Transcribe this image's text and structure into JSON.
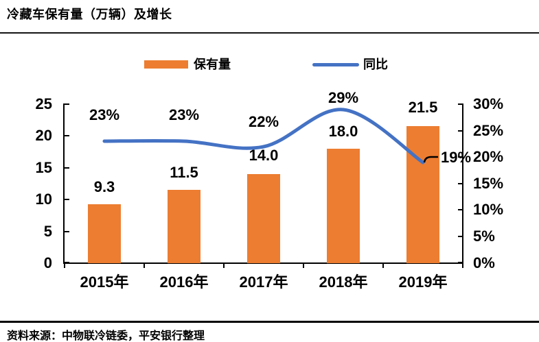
{
  "title": "冷藏车保有量（万辆）及增长",
  "source_note": "资料来源：中物联冷链委，平安银行整理",
  "legend": {
    "bar_label": "保有量",
    "line_label": "同比"
  },
  "colors": {
    "bar": "#ED7D31",
    "line": "#4472C4",
    "axis": "#000000"
  },
  "chart_data": {
    "type": "bar+line",
    "title": "冷藏车保有量（万辆）及增长",
    "categories": [
      "2015年",
      "2016年",
      "2017年",
      "2018年",
      "2019年"
    ],
    "series": [
      {
        "name": "保有量",
        "type": "bar",
        "axis": "left",
        "color": "#ED7D31",
        "values": [
          9.3,
          11.5,
          14.0,
          18.0,
          21.5
        ],
        "data_labels": [
          "9.3",
          "11.5",
          "14.0",
          "18.0",
          "21.5"
        ]
      },
      {
        "name": "同比",
        "type": "line",
        "axis": "right",
        "color": "#4472C4",
        "smooth": true,
        "values": [
          23,
          23,
          22,
          29,
          19
        ],
        "data_labels": [
          "23%",
          "23%",
          "22%",
          "29%",
          "19%"
        ]
      }
    ],
    "left_axis": {
      "min": 0,
      "max": 25,
      "tick_labels": [
        "25",
        "20",
        "15",
        "10",
        "5",
        "0"
      ]
    },
    "right_axis": {
      "min": 0,
      "max": 30,
      "tick_labels": [
        "30%",
        "25%",
        "20%",
        "15%",
        "10%",
        "5%",
        "0%"
      ]
    },
    "grid": false,
    "legend_position": "top"
  }
}
